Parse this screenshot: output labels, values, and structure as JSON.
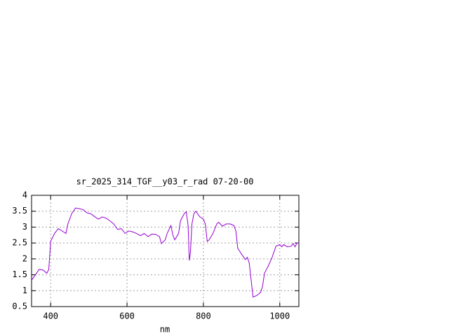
{
  "chart_data": {
    "type": "line",
    "title": "sr_2025_314_TGF__y03_r_rad 07-20-00",
    "xlabel": "nm",
    "x": [
      350,
      360,
      370,
      380,
      390,
      395,
      400,
      410,
      420,
      430,
      440,
      445,
      455,
      465,
      475,
      485,
      495,
      505,
      515,
      525,
      535,
      545,
      555,
      565,
      575,
      585,
      595,
      605,
      615,
      625,
      635,
      645,
      655,
      665,
      675,
      685,
      690,
      700,
      705,
      715,
      720,
      725,
      735,
      740,
      750,
      755,
      760,
      763,
      766,
      770,
      775,
      780,
      790,
      800,
      805,
      810,
      815,
      825,
      835,
      840,
      850,
      860,
      870,
      880,
      885,
      890,
      900,
      910,
      915,
      920,
      930,
      940,
      950,
      955,
      960,
      970,
      980,
      990,
      1000,
      1005,
      1010,
      1020,
      1030,
      1035,
      1040,
      1045,
      1050
    ],
    "series": [
      {
        "color": "#9400d3",
        "values": [
          1.33,
          1.5,
          1.67,
          1.65,
          1.55,
          1.67,
          2.55,
          2.8,
          2.95,
          2.88,
          2.8,
          3.1,
          3.42,
          3.6,
          3.58,
          3.55,
          3.45,
          3.42,
          3.33,
          3.25,
          3.32,
          3.28,
          3.2,
          3.1,
          2.93,
          2.95,
          2.8,
          2.88,
          2.85,
          2.8,
          2.73,
          2.8,
          2.7,
          2.78,
          2.77,
          2.7,
          2.48,
          2.6,
          2.8,
          3.05,
          2.75,
          2.6,
          2.8,
          3.2,
          3.43,
          3.48,
          3.05,
          1.95,
          2.2,
          3.1,
          3.42,
          3.5,
          3.33,
          3.25,
          3.1,
          2.55,
          2.6,
          2.8,
          3.1,
          3.15,
          3.03,
          3.1,
          3.1,
          3.05,
          2.88,
          2.33,
          2.15,
          1.98,
          2.05,
          1.87,
          0.8,
          0.85,
          0.95,
          1.15,
          1.55,
          1.78,
          2.05,
          2.4,
          2.45,
          2.38,
          2.45,
          2.38,
          2.4,
          2.48,
          2.38,
          2.5,
          2.5
        ]
      }
    ],
    "xlim": [
      350,
      1050
    ],
    "xticks": [
      400,
      600,
      800,
      1000
    ],
    "ylim": [
      0.5,
      4
    ],
    "yticks": [
      0.5,
      1,
      1.5,
      2,
      2.5,
      3,
      3.5,
      4
    ],
    "grid": true
  }
}
